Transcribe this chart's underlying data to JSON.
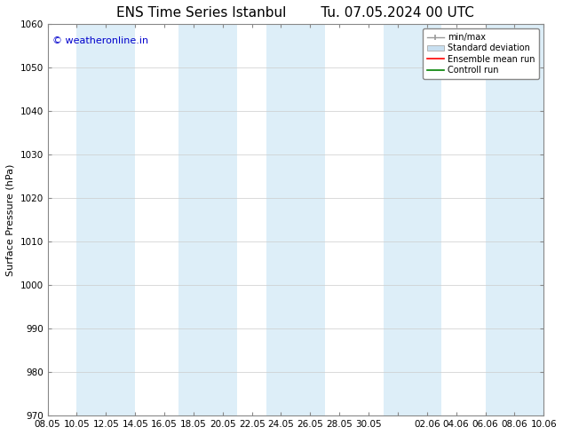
{
  "title": "ENS Time Series Istanbul",
  "subtitle": "Tu. 07.05.2024 00 UTC",
  "ylabel": "Surface Pressure (hPa)",
  "ylim": [
    970,
    1060
  ],
  "yticks": [
    970,
    980,
    990,
    1000,
    1010,
    1020,
    1030,
    1040,
    1050,
    1060
  ],
  "x_tick_labels": [
    "08.05",
    "10.05",
    "12.05",
    "14.05",
    "16.05",
    "18.05",
    "20.05",
    "22.05",
    "24.05",
    "26.05",
    "28.05",
    "30.05",
    "",
    "02.06",
    "04.06",
    "06.06",
    "08.06",
    "10.06"
  ],
  "watermark": "© weatheronline.in",
  "watermark_color": "#0000cc",
  "background_color": "#ffffff",
  "plot_bg_color": "#ffffff",
  "band_color": "#ddeef8",
  "legend_labels": [
    "min/max",
    "Standard deviation",
    "Ensemble mean run",
    "Controll run"
  ],
  "legend_colors": [
    "#aaaaaa",
    "#c8dff0",
    "#ff0000",
    "#008000"
  ],
  "title_fontsize": 11,
  "axis_fontsize": 8,
  "tick_fontsize": 7.5
}
